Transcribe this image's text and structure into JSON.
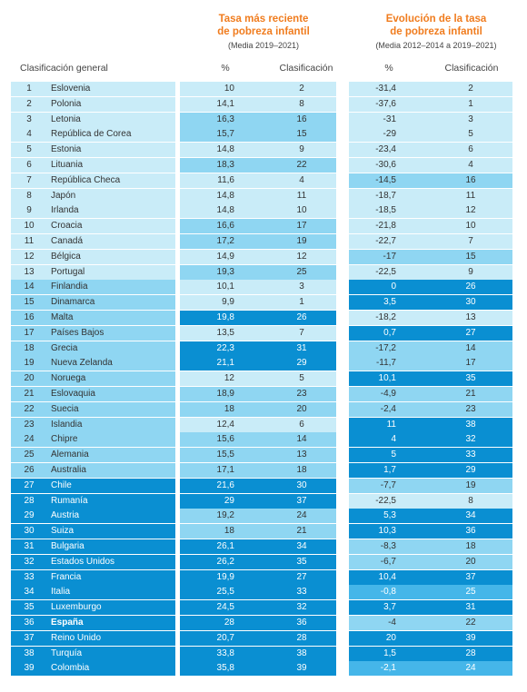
{
  "header": {
    "recent": {
      "title1": "Tasa más reciente",
      "title2": "de pobreza infantil",
      "sub": "(Media 2019–2021)"
    },
    "evolution": {
      "title1": "Evolución de la tasa",
      "title2": "de pobreza infantil",
      "sub": "(Media 2012–2014 a 2019–2021)"
    },
    "col_overall": "Clasificación general",
    "col_pct": "%",
    "col_rank": "Clasificación",
    "col_pct2": "%",
    "col_rank2": "Clasificación"
  },
  "colors": {
    "c1": "#c9ecf8",
    "c2": "#8fd6f2",
    "c3": "#45b6e9",
    "c4": "#0a8fd2"
  },
  "rows": [
    {
      "rank": "1",
      "country": "Eslovenia",
      "pct": "10",
      "prank": "2",
      "evo": "-31,4",
      "erank": "2",
      "lc": 1,
      "pc": 1,
      "ec": 1
    },
    {
      "rank": "2",
      "country": "Polonia",
      "pct": "14,1",
      "prank": "8",
      "evo": "-37,6",
      "erank": "1",
      "lc": 1,
      "pc": 1,
      "ec": 1
    },
    {
      "rank": "3",
      "country": "Letonia",
      "pct": "16,3",
      "prank": "16",
      "evo": "-31",
      "erank": "3",
      "lc": 1,
      "pc": 2,
      "ec": 1
    },
    {
      "rank": "4",
      "country": "República de Corea",
      "pct": "15,7",
      "prank": "15",
      "evo": "-29",
      "erank": "5",
      "lc": 1,
      "pc": 2,
      "ec": 1
    },
    {
      "rank": "5",
      "country": "Estonia",
      "pct": "14,8",
      "prank": "9",
      "evo": "-23,4",
      "erank": "6",
      "lc": 1,
      "pc": 1,
      "ec": 1
    },
    {
      "rank": "6",
      "country": "Lituania",
      "pct": "18,3",
      "prank": "22",
      "evo": "-30,6",
      "erank": "4",
      "lc": 1,
      "pc": 2,
      "ec": 1
    },
    {
      "rank": "7",
      "country": "República Checa",
      "pct": "11,6",
      "prank": "4",
      "evo": "-14,5",
      "erank": "16",
      "lc": 1,
      "pc": 1,
      "ec": 2
    },
    {
      "rank": "8",
      "country": "Japón",
      "pct": "14,8",
      "prank": "11",
      "evo": "-18,7",
      "erank": "11",
      "lc": 1,
      "pc": 1,
      "ec": 1
    },
    {
      "rank": "9",
      "country": "Irlanda",
      "pct": "14,8",
      "prank": "10",
      "evo": "-18,5",
      "erank": "12",
      "lc": 1,
      "pc": 1,
      "ec": 1
    },
    {
      "rank": "10",
      "country": "Croacia",
      "pct": "16,6",
      "prank": "17",
      "evo": "-21,8",
      "erank": "10",
      "lc": 1,
      "pc": 2,
      "ec": 1
    },
    {
      "rank": "11",
      "country": "Canadá",
      "pct": "17,2",
      "prank": "19",
      "evo": "-22,7",
      "erank": "7",
      "lc": 1,
      "pc": 2,
      "ec": 1
    },
    {
      "rank": "12",
      "country": "Bélgica",
      "pct": "14,9",
      "prank": "12",
      "evo": "-17",
      "erank": "15",
      "lc": 1,
      "pc": 1,
      "ec": 2
    },
    {
      "rank": "13",
      "country": "Portugal",
      "pct": "19,3",
      "prank": "25",
      "evo": "-22,5",
      "erank": "9",
      "lc": 1,
      "pc": 2,
      "ec": 1
    },
    {
      "rank": "14",
      "country": "Finlandia",
      "pct": "10,1",
      "prank": "3",
      "evo": "0",
      "erank": "26",
      "lc": 2,
      "pc": 1,
      "ec": 4
    },
    {
      "rank": "15",
      "country": "Dinamarca",
      "pct": "9,9",
      "prank": "1",
      "evo": "3,5",
      "erank": "30",
      "lc": 2,
      "pc": 1,
      "ec": 4
    },
    {
      "rank": "16",
      "country": "Malta",
      "pct": "19,8",
      "prank": "26",
      "evo": "-18,2",
      "erank": "13",
      "lc": 2,
      "pc": 4,
      "ec": 1
    },
    {
      "rank": "17",
      "country": "Países Bajos",
      "pct": "13,5",
      "prank": "7",
      "evo": "0,7",
      "erank": "27",
      "lc": 2,
      "pc": 1,
      "ec": 4
    },
    {
      "rank": "18",
      "country": "Grecia",
      "pct": "22,3",
      "prank": "31",
      "evo": "-17,2",
      "erank": "14",
      "lc": 2,
      "pc": 4,
      "ec": 2
    },
    {
      "rank": "19",
      "country": "Nueva Zelanda",
      "pct": "21,1",
      "prank": "29",
      "evo": "-11,7",
      "erank": "17",
      "lc": 2,
      "pc": 4,
      "ec": 2
    },
    {
      "rank": "20",
      "country": "Noruega",
      "pct": "12",
      "prank": "5",
      "evo": "10,1",
      "erank": "35",
      "lc": 2,
      "pc": 1,
      "ec": 4
    },
    {
      "rank": "21",
      "country": "Eslovaquia",
      "pct": "18,9",
      "prank": "23",
      "evo": "-4,9",
      "erank": "21",
      "lc": 2,
      "pc": 2,
      "ec": 2
    },
    {
      "rank": "22",
      "country": "Suecia",
      "pct": "18",
      "prank": "20",
      "evo": "-2,4",
      "erank": "23",
      "lc": 2,
      "pc": 2,
      "ec": 2
    },
    {
      "rank": "23",
      "country": "Islandia",
      "pct": "12,4",
      "prank": "6",
      "evo": "11",
      "erank": "38",
      "lc": 2,
      "pc": 1,
      "ec": 4
    },
    {
      "rank": "24",
      "country": "Chipre",
      "pct": "15,6",
      "prank": "14",
      "evo": "4",
      "erank": "32",
      "lc": 2,
      "pc": 2,
      "ec": 4
    },
    {
      "rank": "25",
      "country": "Alemania",
      "pct": "15,5",
      "prank": "13",
      "evo": "5",
      "erank": "33",
      "lc": 2,
      "pc": 2,
      "ec": 4
    },
    {
      "rank": "26",
      "country": "Australia",
      "pct": "17,1",
      "prank": "18",
      "evo": "1,7",
      "erank": "29",
      "lc": 2,
      "pc": 2,
      "ec": 4
    },
    {
      "rank": "27",
      "country": "Chile",
      "pct": "21,6",
      "prank": "30",
      "evo": "-7,7",
      "erank": "19",
      "lc": 4,
      "pc": 4,
      "ec": 2
    },
    {
      "rank": "28",
      "country": "Rumanía",
      "pct": "29",
      "prank": "37",
      "evo": "-22,5",
      "erank": "8",
      "lc": 4,
      "pc": 4,
      "ec": 1
    },
    {
      "rank": "29",
      "country": "Austria",
      "pct": "19,2",
      "prank": "24",
      "evo": "5,3",
      "erank": "34",
      "lc": 4,
      "pc": 2,
      "ec": 4
    },
    {
      "rank": "30",
      "country": "Suiza",
      "pct": "18",
      "prank": "21",
      "evo": "10,3",
      "erank": "36",
      "lc": 4,
      "pc": 2,
      "ec": 4
    },
    {
      "rank": "31",
      "country": "Bulgaria",
      "pct": "26,1",
      "prank": "34",
      "evo": "-8,3",
      "erank": "18",
      "lc": 4,
      "pc": 4,
      "ec": 2
    },
    {
      "rank": "32",
      "country": "Estados Unidos",
      "pct": "26,2",
      "prank": "35",
      "evo": "-6,7",
      "erank": "20",
      "lc": 4,
      "pc": 4,
      "ec": 2
    },
    {
      "rank": "33",
      "country": "Francia",
      "pct": "19,9",
      "prank": "27",
      "evo": "10,4",
      "erank": "37",
      "lc": 4,
      "pc": 4,
      "ec": 4
    },
    {
      "rank": "34",
      "country": "Italia",
      "pct": "25,5",
      "prank": "33",
      "evo": "-0,8",
      "erank": "25",
      "lc": 4,
      "pc": 4,
      "ec": 3
    },
    {
      "rank": "35",
      "country": "Luxemburgo",
      "pct": "24,5",
      "prank": "32",
      "evo": "3,7",
      "erank": "31",
      "lc": 4,
      "pc": 4,
      "ec": 4
    },
    {
      "rank": "36",
      "country": "España",
      "pct": "28",
      "prank": "36",
      "evo": "-4",
      "erank": "22",
      "lc": 4,
      "pc": 4,
      "ec": 2,
      "bold": true
    },
    {
      "rank": "37",
      "country": "Reino Unido",
      "pct": "20,7",
      "prank": "28",
      "evo": "20",
      "erank": "39",
      "lc": 4,
      "pc": 4,
      "ec": 4
    },
    {
      "rank": "38",
      "country": "Turquía",
      "pct": "33,8",
      "prank": "38",
      "evo": "1,5",
      "erank": "28",
      "lc": 4,
      "pc": 4,
      "ec": 4
    },
    {
      "rank": "39",
      "country": "Colombia",
      "pct": "35,8",
      "prank": "39",
      "evo": "-2,1",
      "erank": "24",
      "lc": 4,
      "pc": 4,
      "ec": 3
    }
  ]
}
